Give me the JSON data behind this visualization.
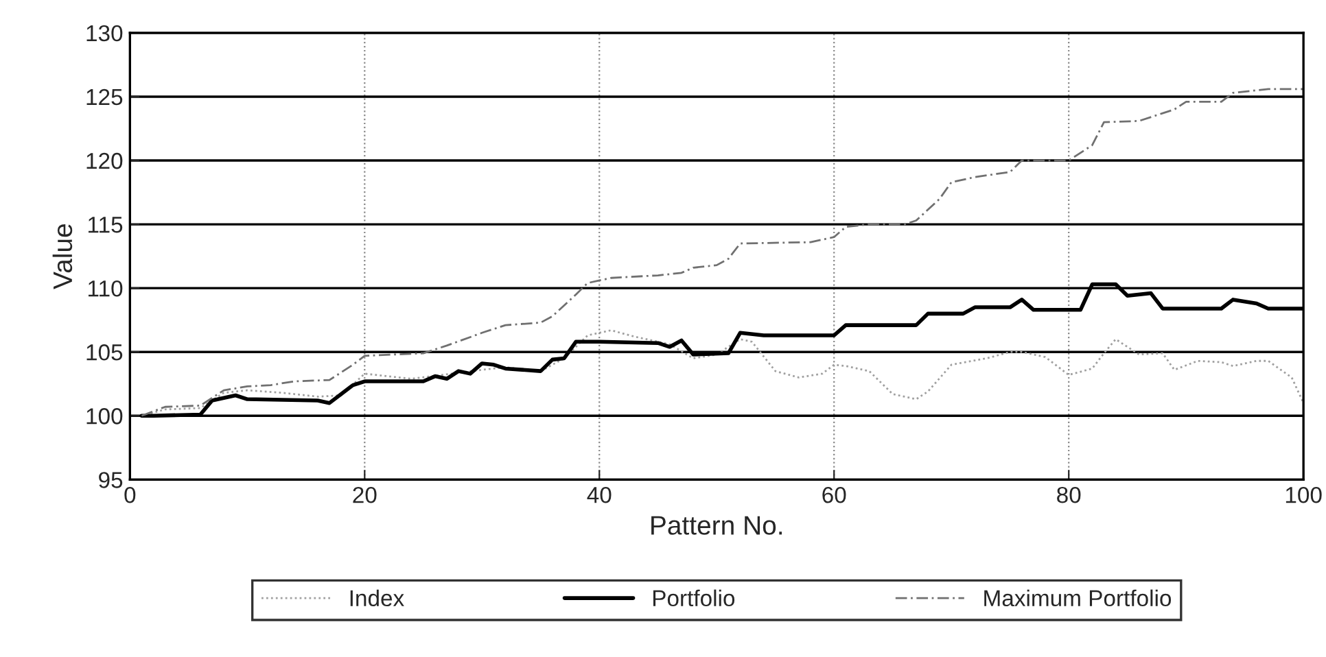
{
  "chart_data": {
    "type": "line",
    "xlabel": "Pattern No.",
    "ylabel": "Value",
    "xlim": [
      0,
      100
    ],
    "xticks": [
      0,
      20,
      40,
      60,
      80,
      100
    ],
    "ylim": [
      95,
      130
    ],
    "yticks": [
      95,
      100,
      105,
      110,
      115,
      120,
      125,
      130
    ],
    "grid": true,
    "legend": "bottom",
    "marker": "none",
    "series": [
      {
        "name": "Index",
        "color": "#a0a0a0",
        "line_style": "dotted",
        "x": [
          1,
          3,
          6,
          8,
          10,
          13,
          16,
          18,
          20,
          22,
          24,
          30,
          32,
          35,
          37,
          39,
          41,
          43,
          46,
          48,
          50,
          52,
          53,
          55,
          57,
          59,
          60,
          61,
          63,
          65,
          67,
          68,
          70,
          73,
          75,
          76,
          78,
          80,
          82,
          83,
          84,
          86,
          88,
          89,
          91,
          93,
          94,
          96,
          97,
          99,
          100
        ],
        "values": [
          100,
          100.5,
          100.6,
          101.8,
          102,
          101.8,
          101.5,
          101.6,
          103.3,
          103.1,
          102.9,
          103.6,
          103.8,
          103.5,
          104.5,
          106.3,
          106.7,
          106.2,
          105.6,
          104.5,
          104.8,
          106.0,
          105.8,
          103.5,
          103.0,
          103.3,
          104.0,
          103.9,
          103.5,
          101.7,
          101.3,
          101.9,
          104.0,
          104.5,
          105.0,
          105.0,
          104.6,
          103.2,
          103.7,
          104.9,
          106.0,
          104.8,
          104.9,
          103.6,
          104.3,
          104.2,
          103.9,
          104.3,
          104.3,
          103.0,
          101.0
        ]
      },
      {
        "name": "Portfolio",
        "color": "#000000",
        "line_style": "solid",
        "x": [
          1,
          2,
          6,
          7,
          9,
          10,
          16,
          17,
          19,
          20,
          25,
          26,
          27,
          28,
          29,
          30,
          31,
          32,
          35,
          36,
          37,
          38,
          40,
          45,
          46,
          47,
          48,
          51,
          52,
          54,
          60,
          61,
          67,
          68,
          71,
          72,
          75,
          76,
          77,
          81,
          82,
          84,
          85,
          87,
          88,
          93,
          94,
          96,
          97,
          100
        ],
        "values": [
          100,
          100,
          100.1,
          101.2,
          101.6,
          101.3,
          101.2,
          101,
          102.4,
          102.7,
          102.7,
          103.1,
          102.9,
          103.5,
          103.3,
          104.1,
          104.0,
          103.7,
          103.5,
          104.4,
          104.5,
          105.8,
          105.8,
          105.7,
          105.4,
          105.9,
          104.8,
          104.9,
          106.5,
          106.3,
          106.3,
          107.1,
          107.1,
          108.0,
          108.0,
          108.5,
          108.5,
          109.1,
          108.3,
          108.3,
          110.3,
          110.3,
          109.4,
          109.6,
          108.4,
          108.4,
          109.1,
          108.8,
          108.4,
          108.4
        ]
      },
      {
        "name": "Maximum Portfolio",
        "color": "#707070",
        "line_style": "dashed",
        "x": [
          1,
          3,
          6,
          8,
          10,
          12,
          14,
          17,
          19,
          20,
          25,
          27,
          30,
          32,
          35,
          36,
          38,
          39,
          41,
          45,
          47,
          48,
          50,
          51,
          52,
          58,
          60,
          61,
          63,
          66,
          67,
          69,
          70,
          72,
          75,
          76,
          80,
          81,
          82,
          83,
          86,
          88,
          89,
          90,
          93,
          94,
          97,
          100
        ],
        "values": [
          100,
          100.7,
          100.8,
          102,
          102.3,
          102.4,
          102.7,
          102.8,
          104.0,
          104.7,
          104.9,
          105.5,
          106.5,
          107.1,
          107.3,
          107.8,
          109.5,
          110.4,
          110.8,
          111.0,
          111.2,
          111.6,
          111.8,
          112.3,
          113.5,
          113.6,
          114.0,
          114.8,
          115.0,
          115.0,
          115.3,
          117.0,
          118.3,
          118.7,
          119.1,
          120.0,
          120.0,
          120.6,
          121.2,
          123.0,
          123.1,
          123.7,
          124.0,
          124.6,
          124.6,
          125.3,
          125.6,
          125.6
        ]
      }
    ]
  }
}
